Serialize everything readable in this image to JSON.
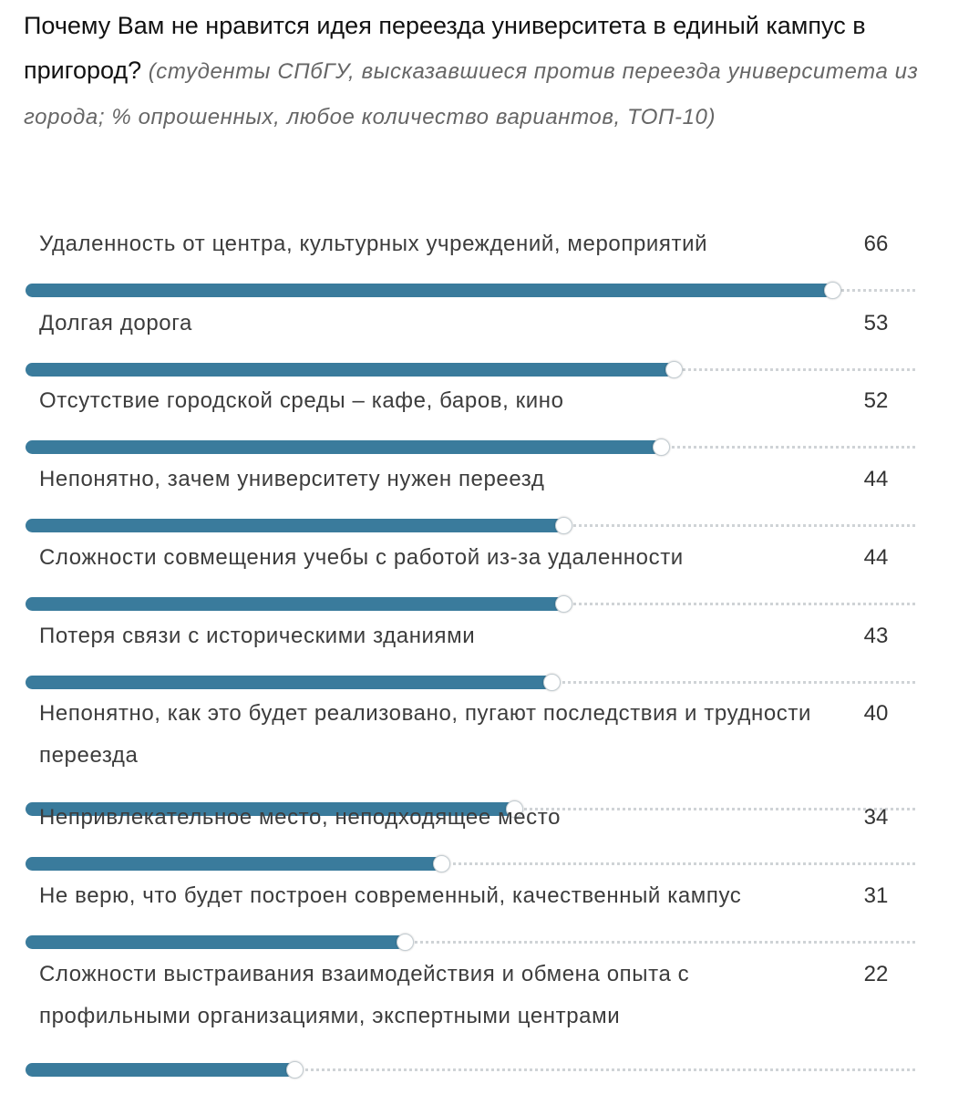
{
  "header": {
    "title": "Почему Вам не нравится идея переезда университета в единый кампус в пригород?",
    "subtitle": "(студенты СПбГУ, высказавшиеся против переезда университета из города; % опрошенных, любое количество вариантов, ТОП-10)"
  },
  "colors": {
    "bar": "#3a7b9c",
    "track": "#cfd3d6",
    "knob": "#ffffff"
  },
  "chart_data": {
    "type": "bar",
    "orientation": "horizontal",
    "title": "Почему Вам не нравится идея переезда университета в единый кампус в пригород?",
    "subtitle": "(студенты СПбГУ, высказавшиеся против переезда университета из города; % опрошенных, любое количество вариантов, ТОП-10)",
    "xlim": [
      0,
      66
    ],
    "categories": [
      "Удаленность от центра, культурных учреждений, мероприятий",
      "Долгая дорога",
      "Отсутствие городской среды – кафе, баров, кино",
      "Непонятно, зачем университету нужен переезд",
      "Сложности совмещения учебы с работой из-за удаленности",
      "Потеря связи с историческими зданиями",
      "Непонятно, как это будет реализовано, пугают последствия и трудности переезда",
      "Непривлекательное место, неподходящее место",
      "Не верю, что будет построен современный, качественный кампус",
      "Сложности выстраивания взаимодействия и обмена опыта с профильными организациями, экспертными центрами"
    ],
    "values": [
      66,
      53,
      52,
      44,
      44,
      43,
      40,
      34,
      31,
      22
    ]
  }
}
